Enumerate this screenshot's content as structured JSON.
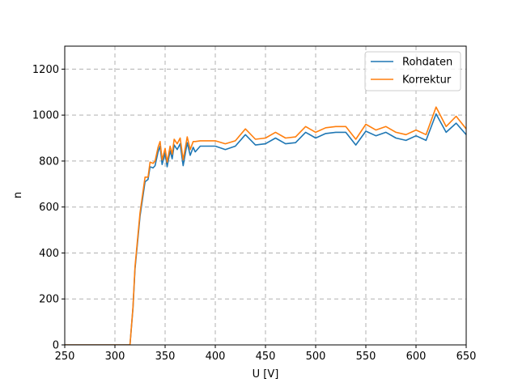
{
  "chart_data": {
    "type": "line",
    "title": "",
    "xlabel": "U [V]",
    "ylabel": "n",
    "xlim": [
      250,
      650
    ],
    "ylim": [
      0,
      1300
    ],
    "xticks": [
      250,
      300,
      350,
      400,
      450,
      500,
      550,
      600,
      650
    ],
    "yticks": [
      0,
      200,
      400,
      600,
      800,
      1000,
      1200
    ],
    "grid": true,
    "grid_style": "dashed",
    "legend_position": "upper-right",
    "series": [
      {
        "name": "Rohdaten",
        "color": "#1f77b4",
        "points": [
          [
            250,
            0
          ],
          [
            310,
            0
          ],
          [
            315,
            0
          ],
          [
            318,
            160
          ],
          [
            320,
            330
          ],
          [
            325,
            560
          ],
          [
            330,
            710
          ],
          [
            333,
            720
          ],
          [
            335,
            775
          ],
          [
            338,
            770
          ],
          [
            340,
            780
          ],
          [
            343,
            840
          ],
          [
            345,
            865
          ],
          [
            347,
            785
          ],
          [
            350,
            835
          ],
          [
            352,
            775
          ],
          [
            355,
            845
          ],
          [
            357,
            810
          ],
          [
            359,
            870
          ],
          [
            362,
            850
          ],
          [
            365,
            875
          ],
          [
            368,
            780
          ],
          [
            372,
            880
          ],
          [
            375,
            825
          ],
          [
            378,
            860
          ],
          [
            380,
            840
          ],
          [
            385,
            865
          ],
          [
            400,
            865
          ],
          [
            410,
            850
          ],
          [
            420,
            865
          ],
          [
            430,
            915
          ],
          [
            440,
            870
          ],
          [
            450,
            875
          ],
          [
            460,
            900
          ],
          [
            470,
            875
          ],
          [
            480,
            880
          ],
          [
            490,
            925
          ],
          [
            500,
            900
          ],
          [
            510,
            920
          ],
          [
            520,
            925
          ],
          [
            530,
            925
          ],
          [
            540,
            870
          ],
          [
            550,
            930
          ],
          [
            560,
            910
          ],
          [
            570,
            925
          ],
          [
            580,
            900
          ],
          [
            590,
            890
          ],
          [
            600,
            910
          ],
          [
            610,
            890
          ],
          [
            620,
            1005
          ],
          [
            630,
            925
          ],
          [
            640,
            965
          ],
          [
            650,
            915
          ]
        ]
      },
      {
        "name": "Korrektur",
        "color": "#ff7f0e",
        "points": [
          [
            250,
            0
          ],
          [
            310,
            0
          ],
          [
            315,
            0
          ],
          [
            318,
            165
          ],
          [
            320,
            340
          ],
          [
            325,
            575
          ],
          [
            330,
            730
          ],
          [
            333,
            730
          ],
          [
            335,
            795
          ],
          [
            338,
            790
          ],
          [
            340,
            800
          ],
          [
            343,
            860
          ],
          [
            345,
            885
          ],
          [
            347,
            805
          ],
          [
            350,
            855
          ],
          [
            352,
            795
          ],
          [
            355,
            865
          ],
          [
            357,
            830
          ],
          [
            359,
            895
          ],
          [
            362,
            875
          ],
          [
            365,
            900
          ],
          [
            368,
            805
          ],
          [
            372,
            905
          ],
          [
            375,
            850
          ],
          [
            378,
            885
          ],
          [
            380,
            885
          ],
          [
            385,
            888
          ],
          [
            400,
            888
          ],
          [
            410,
            875
          ],
          [
            420,
            888
          ],
          [
            430,
            940
          ],
          [
            440,
            895
          ],
          [
            450,
            900
          ],
          [
            460,
            925
          ],
          [
            470,
            900
          ],
          [
            480,
            905
          ],
          [
            490,
            950
          ],
          [
            500,
            925
          ],
          [
            510,
            945
          ],
          [
            520,
            950
          ],
          [
            530,
            950
          ],
          [
            540,
            895
          ],
          [
            550,
            960
          ],
          [
            560,
            935
          ],
          [
            570,
            950
          ],
          [
            580,
            925
          ],
          [
            590,
            915
          ],
          [
            600,
            935
          ],
          [
            610,
            915
          ],
          [
            620,
            1035
          ],
          [
            630,
            950
          ],
          [
            640,
            995
          ],
          [
            650,
            940
          ]
        ]
      }
    ]
  }
}
